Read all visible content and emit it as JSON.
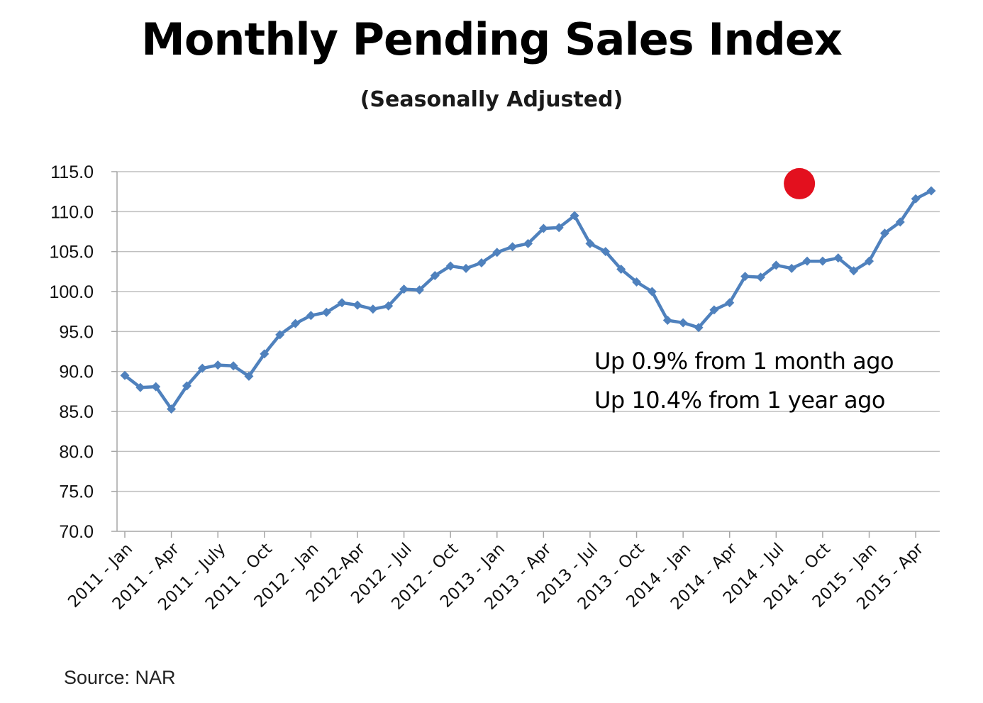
{
  "colors": {
    "series_line": "#4F81BD",
    "marker": "#4F81BD",
    "gridline": "#BFBFBF",
    "axis": "#A6A6A6",
    "highlight_dot": "#E3101E"
  },
  "chart_data": {
    "type": "line",
    "title": "Monthly Pending Sales Index",
    "subtitle": "(Seasonally Adjusted)",
    "ylim": [
      70.0,
      115.0
    ],
    "ytick_step": 5.0,
    "ytick_decimals": 1,
    "grid": true,
    "legend": "none",
    "tick_labels": [
      {
        "index": 0,
        "label": "2011 - Jan"
      },
      {
        "index": 3,
        "label": "2011 - Apr"
      },
      {
        "index": 6,
        "label": "2011 - July"
      },
      {
        "index": 9,
        "label": "2011 - Oct"
      },
      {
        "index": 12,
        "label": "2012 - Jan"
      },
      {
        "index": 15,
        "label": "2012-Apr"
      },
      {
        "index": 18,
        "label": "2012 - Jul"
      },
      {
        "index": 21,
        "label": "2012 - Oct"
      },
      {
        "index": 24,
        "label": "2013 - Jan"
      },
      {
        "index": 27,
        "label": "2013 - Apr"
      },
      {
        "index": 30,
        "label": "2013 - Jul"
      },
      {
        "index": 33,
        "label": "2013 - Oct"
      },
      {
        "index": 36,
        "label": "2014 - Jan"
      },
      {
        "index": 39,
        "label": "2014 - Apr"
      },
      {
        "index": 42,
        "label": "2014 - Jul"
      },
      {
        "index": 45,
        "label": "2014 - Oct"
      },
      {
        "index": 48,
        "label": "2015 - Jan"
      },
      {
        "index": 51,
        "label": "2015 - Apr"
      }
    ],
    "series": [
      {
        "values": [
          89.5,
          88.0,
          88.1,
          85.3,
          88.2,
          90.4,
          90.8,
          90.7,
          89.4,
          92.2,
          94.6,
          96.0,
          97.0,
          97.4,
          98.6,
          98.3,
          97.8,
          98.2,
          100.3,
          100.2,
          102.0,
          103.2,
          102.9,
          103.6,
          104.9,
          105.6,
          106.0,
          107.9,
          108.0,
          109.5,
          106.0,
          105.0,
          102.8,
          101.2,
          100.0,
          96.4,
          96.1,
          95.5,
          97.7,
          98.6,
          101.9,
          101.8,
          103.3,
          102.9,
          103.8,
          103.8,
          104.2,
          102.6,
          103.8,
          107.3,
          108.7,
          111.6,
          112.6
        ]
      }
    ],
    "highlight_marker": {
      "x_index": 43.5,
      "y": 113.5
    },
    "annotations": [
      "Up 0.9% from 1 month ago",
      "Up 10.4% from 1 year ago"
    ],
    "source": "Source: NAR"
  }
}
